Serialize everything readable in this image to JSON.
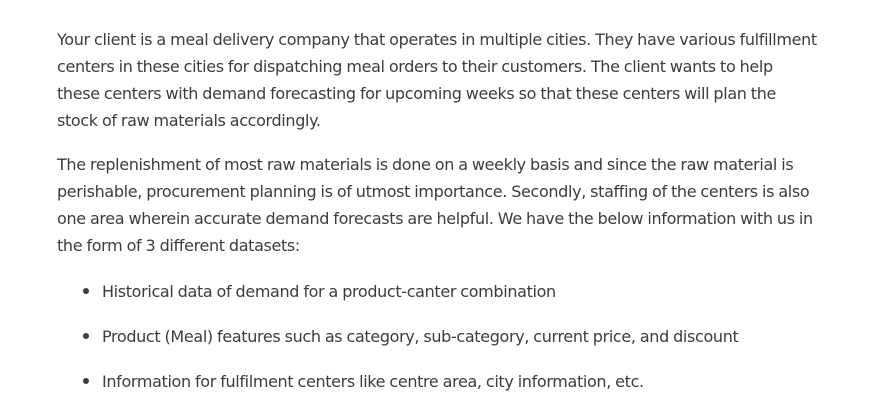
{
  "document": {
    "paragraphs": [
      "Your client is a meal delivery company that operates in multiple cities. They have various fulfillment centers in these cities for dispatching meal orders to their customers. The client wants to help these centers with demand forecasting for upcoming weeks so that these centers will plan the stock of raw materials accordingly.",
      "The replenishment of most raw materials is done on a weekly basis and since the raw material is perishable, procurement planning is of utmost importance. Secondly, staffing of the centers is also one area wherein accurate demand forecasts are helpful. We have the below information with us in the form of 3 different datasets:"
    ],
    "bullets": [
      "Historical data of demand for a product-canter combination",
      "Product (Meal) features such as category, sub-category, current price, and discount",
      "Information for fulfilment centers like centre area, city information, etc."
    ]
  }
}
